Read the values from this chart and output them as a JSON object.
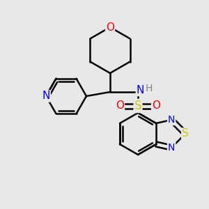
{
  "bg_color": "#e8e8e8",
  "bond_color": "#000000",
  "bond_width": 1.8,
  "atom_colors": {
    "O": "#ff0000",
    "N": "#0000ff",
    "S_sulfonyl": "#cccc00",
    "S_thiadiazole": "#cccc00",
    "N_thiadiazole": "#0000ff",
    "N_pyridine": "#0000ff",
    "H": "#808080",
    "C": "#000000"
  },
  "font_size": 10,
  "fig_size": [
    3.0,
    3.0
  ],
  "dpi": 100
}
